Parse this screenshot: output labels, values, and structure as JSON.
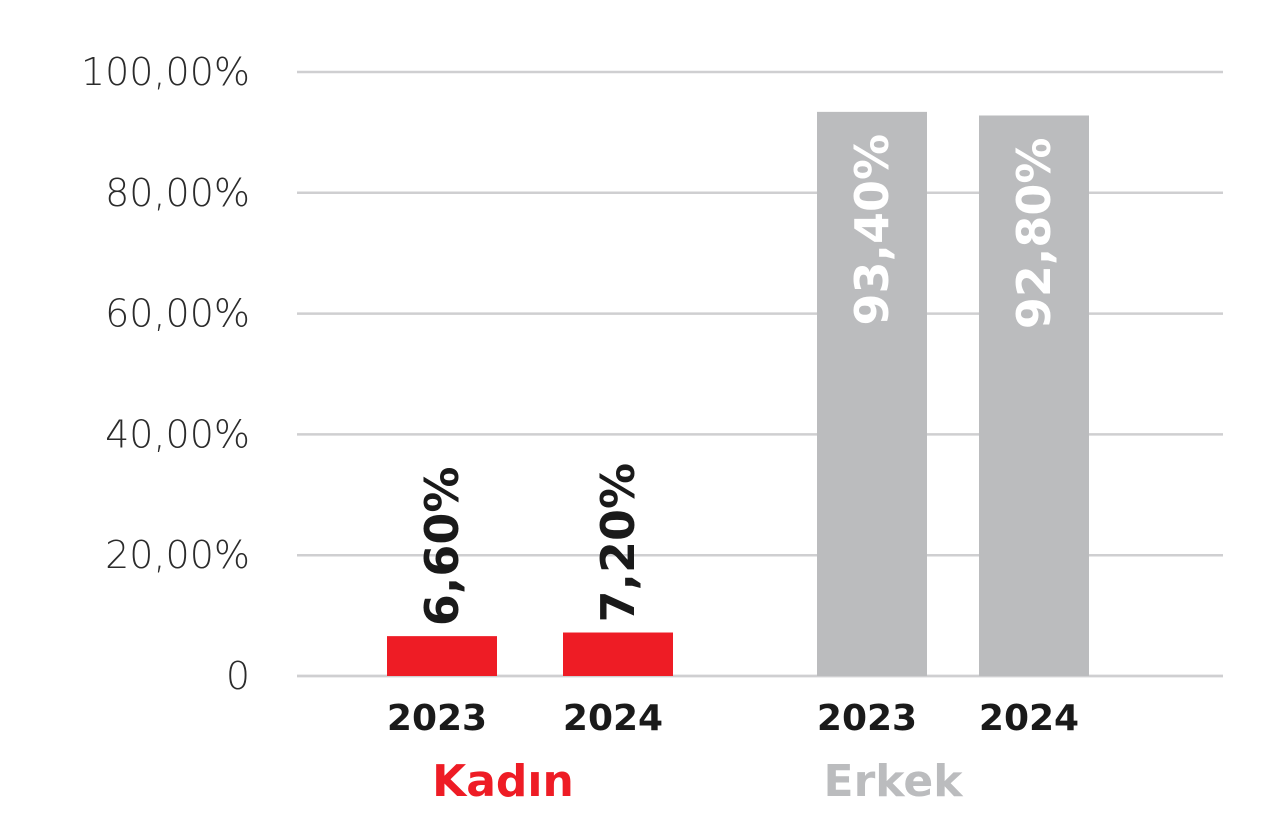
{
  "chart_data": {
    "type": "bar",
    "ylim": [
      0,
      100
    ],
    "y_ticks": [
      "0",
      "20,00%",
      "40,00%",
      "60,00%",
      "80,00%",
      "100,00%"
    ],
    "grid": true,
    "groups": [
      {
        "label": "Kadın",
        "color": "#ee1c25",
        "label_color": "#ee1c25",
        "data_label_color": "#1a1a1a",
        "categories": [
          "2023",
          "2024"
        ],
        "values": [
          6.6,
          7.2
        ],
        "data_labels": [
          "6,60%",
          "7,20%"
        ]
      },
      {
        "label": "Erkek",
        "color": "#bbbcbe",
        "label_color": "#bbbcbe",
        "data_label_color": "#ffffff",
        "categories": [
          "2023",
          "2024"
        ],
        "values": [
          93.4,
          92.8
        ],
        "data_labels": [
          "93,40%",
          "92,80%"
        ]
      }
    ]
  }
}
